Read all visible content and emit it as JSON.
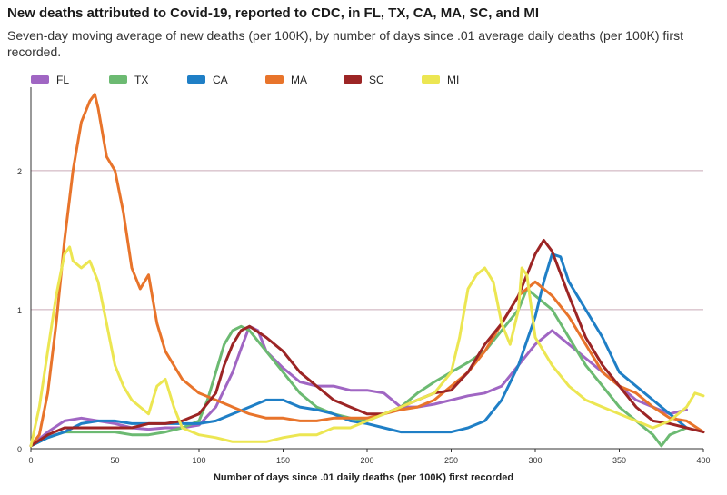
{
  "chart_data": {
    "type": "line",
    "title": "New deaths attributed to Covid-19, reported to CDC, in FL, TX, CA, MA, SC, and MI",
    "subtitle": "Seven-day moving average of new deaths (per 100K), by number of days since .01 average daily deaths (per 100K) first recorded.",
    "xlabel": "Number of days since .01 daily deaths (per 100K) first recorded",
    "ylabel": "",
    "xlim": [
      0,
      400
    ],
    "ylim": [
      0,
      2.6
    ],
    "xticks": [
      0,
      50,
      100,
      150,
      200,
      250,
      300,
      350,
      400
    ],
    "yticks": [
      0,
      1,
      2
    ],
    "grid": "horizontal",
    "legend_position": "top-left",
    "series": [
      {
        "name": "FL",
        "color": "#a066c3",
        "x": [
          0,
          10,
          20,
          30,
          40,
          50,
          60,
          70,
          80,
          90,
          100,
          110,
          120,
          125,
          130,
          135,
          140,
          150,
          160,
          170,
          180,
          190,
          200,
          210,
          220,
          230,
          240,
          250,
          260,
          270,
          280,
          290,
          300,
          310,
          320,
          330,
          340,
          350,
          360,
          370,
          380,
          390
        ],
        "y": [
          0.02,
          0.12,
          0.2,
          0.22,
          0.2,
          0.18,
          0.15,
          0.14,
          0.15,
          0.15,
          0.17,
          0.3,
          0.55,
          0.72,
          0.88,
          0.85,
          0.7,
          0.58,
          0.48,
          0.45,
          0.45,
          0.42,
          0.42,
          0.4,
          0.3,
          0.3,
          0.32,
          0.35,
          0.38,
          0.4,
          0.45,
          0.6,
          0.75,
          0.85,
          0.75,
          0.65,
          0.55,
          0.45,
          0.35,
          0.3,
          0.25,
          0.28
        ]
      },
      {
        "name": "TX",
        "color": "#6cba72",
        "x": [
          0,
          10,
          20,
          30,
          40,
          50,
          60,
          70,
          80,
          90,
          100,
          105,
          110,
          115,
          120,
          125,
          130,
          140,
          150,
          160,
          170,
          180,
          190,
          200,
          210,
          220,
          230,
          240,
          250,
          260,
          270,
          280,
          290,
          295,
          300,
          310,
          320,
          330,
          340,
          350,
          360,
          370,
          375,
          380,
          390
        ],
        "y": [
          0.02,
          0.08,
          0.12,
          0.12,
          0.12,
          0.12,
          0.1,
          0.1,
          0.12,
          0.15,
          0.2,
          0.35,
          0.55,
          0.75,
          0.85,
          0.88,
          0.85,
          0.7,
          0.55,
          0.4,
          0.3,
          0.25,
          0.22,
          0.2,
          0.25,
          0.3,
          0.4,
          0.48,
          0.55,
          0.62,
          0.7,
          0.85,
          1.0,
          1.15,
          1.1,
          1.0,
          0.8,
          0.6,
          0.45,
          0.3,
          0.2,
          0.1,
          0.02,
          0.1,
          0.15
        ]
      },
      {
        "name": "CA",
        "color": "#1f7fc6",
        "x": [
          0,
          10,
          20,
          30,
          40,
          50,
          60,
          70,
          80,
          90,
          100,
          110,
          120,
          130,
          140,
          150,
          160,
          170,
          180,
          190,
          200,
          210,
          220,
          230,
          240,
          250,
          260,
          270,
          280,
          290,
          300,
          305,
          310,
          315,
          320,
          330,
          340,
          350,
          360,
          370,
          380,
          390
        ],
        "y": [
          0.02,
          0.08,
          0.12,
          0.18,
          0.2,
          0.2,
          0.18,
          0.18,
          0.18,
          0.18,
          0.18,
          0.2,
          0.25,
          0.3,
          0.35,
          0.35,
          0.3,
          0.28,
          0.25,
          0.2,
          0.18,
          0.15,
          0.12,
          0.12,
          0.12,
          0.12,
          0.15,
          0.2,
          0.35,
          0.6,
          0.95,
          1.2,
          1.4,
          1.38,
          1.2,
          1.0,
          0.8,
          0.55,
          0.45,
          0.35,
          0.25,
          0.15
        ]
      },
      {
        "name": "MA",
        "color": "#e8742b",
        "x": [
          0,
          5,
          10,
          15,
          20,
          25,
          30,
          35,
          38,
          40,
          45,
          50,
          55,
          60,
          65,
          70,
          75,
          80,
          90,
          100,
          110,
          120,
          130,
          140,
          150,
          160,
          170,
          180,
          190,
          200,
          210,
          220,
          230,
          240,
          250,
          260,
          270,
          280,
          290,
          300,
          310,
          320,
          330,
          340,
          350,
          360,
          370,
          380,
          390,
          400
        ],
        "y": [
          0.02,
          0.1,
          0.4,
          0.9,
          1.5,
          2.0,
          2.35,
          2.5,
          2.55,
          2.45,
          2.1,
          2.0,
          1.7,
          1.3,
          1.15,
          1.25,
          0.9,
          0.7,
          0.5,
          0.4,
          0.35,
          0.3,
          0.25,
          0.22,
          0.22,
          0.2,
          0.2,
          0.22,
          0.22,
          0.22,
          0.25,
          0.28,
          0.3,
          0.35,
          0.45,
          0.55,
          0.7,
          0.9,
          1.1,
          1.2,
          1.1,
          0.95,
          0.75,
          0.55,
          0.45,
          0.4,
          0.3,
          0.22,
          0.2,
          0.12
        ]
      },
      {
        "name": "SC",
        "color": "#9c2525",
        "x": [
          0,
          10,
          20,
          30,
          40,
          50,
          60,
          70,
          80,
          90,
          100,
          110,
          115,
          120,
          125,
          130,
          140,
          150,
          160,
          170,
          180,
          190,
          200,
          210,
          220,
          230,
          240,
          250,
          260,
          270,
          280,
          290,
          295,
          300,
          305,
          310,
          320,
          330,
          340,
          350,
          360,
          370,
          380,
          390,
          400
        ],
        "y": [
          0.02,
          0.1,
          0.15,
          0.15,
          0.15,
          0.15,
          0.15,
          0.18,
          0.18,
          0.2,
          0.25,
          0.4,
          0.6,
          0.75,
          0.85,
          0.88,
          0.8,
          0.7,
          0.55,
          0.45,
          0.35,
          0.3,
          0.25,
          0.25,
          0.3,
          0.35,
          0.4,
          0.42,
          0.55,
          0.75,
          0.9,
          1.1,
          1.25,
          1.4,
          1.5,
          1.42,
          1.1,
          0.8,
          0.6,
          0.45,
          0.3,
          0.2,
          0.18,
          0.15,
          0.12
        ]
      },
      {
        "name": "MI",
        "color": "#ece652",
        "x": [
          0,
          5,
          10,
          15,
          20,
          23,
          25,
          30,
          35,
          40,
          45,
          50,
          55,
          60,
          65,
          70,
          75,
          80,
          85,
          90,
          100,
          110,
          120,
          130,
          140,
          150,
          160,
          170,
          180,
          190,
          200,
          210,
          220,
          230,
          240,
          250,
          255,
          260,
          265,
          270,
          275,
          280,
          285,
          290,
          292,
          295,
          300,
          310,
          320,
          330,
          340,
          350,
          360,
          370,
          380,
          390,
          395,
          400
        ],
        "y": [
          0.02,
          0.3,
          0.7,
          1.1,
          1.4,
          1.45,
          1.35,
          1.3,
          1.35,
          1.2,
          0.9,
          0.6,
          0.45,
          0.35,
          0.3,
          0.25,
          0.45,
          0.5,
          0.3,
          0.15,
          0.1,
          0.08,
          0.05,
          0.05,
          0.05,
          0.08,
          0.1,
          0.1,
          0.15,
          0.15,
          0.2,
          0.25,
          0.3,
          0.35,
          0.4,
          0.55,
          0.8,
          1.15,
          1.25,
          1.3,
          1.2,
          0.9,
          0.75,
          1.0,
          1.3,
          1.25,
          0.8,
          0.6,
          0.45,
          0.35,
          0.3,
          0.25,
          0.2,
          0.15,
          0.2,
          0.3,
          0.4,
          0.38
        ]
      }
    ]
  }
}
